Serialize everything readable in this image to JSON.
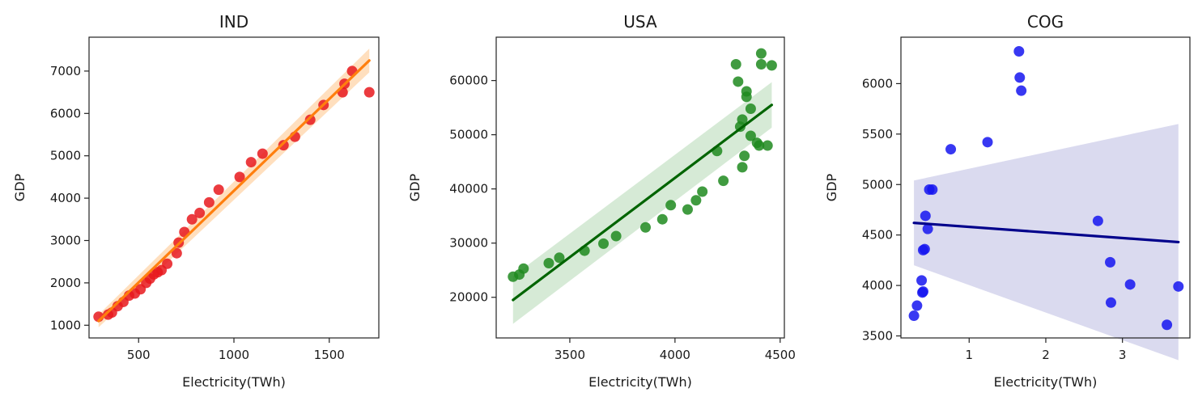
{
  "chart_data": [
    {
      "type": "scatter",
      "title": "IND",
      "xlabel": "Electricity(TWh)",
      "ylabel": "GDP",
      "xlim": [
        240,
        1760
      ],
      "ylim": [
        700,
        7800
      ],
      "xticks": [
        500,
        1000,
        1500
      ],
      "yticks": [
        1000,
        2000,
        3000,
        4000,
        5000,
        6000,
        7000
      ],
      "colors": {
        "points": "#e8191d",
        "line": "#ff7f0e",
        "band": "#ffd9b3"
      },
      "series": [
        {
          "x": [
            290,
            340,
            360,
            390,
            420,
            450,
            480,
            510,
            540,
            560,
            580,
            600,
            620,
            650,
            700,
            710,
            740,
            780,
            820,
            870,
            920,
            1030,
            1090,
            1150,
            1260,
            1320,
            1400,
            1470,
            1570,
            1580,
            1620,
            1710
          ],
          "y": [
            1200,
            1250,
            1300,
            1450,
            1550,
            1700,
            1750,
            1850,
            2000,
            2100,
            2200,
            2250,
            2300,
            2450,
            2700,
            2950,
            3200,
            3500,
            3650,
            3900,
            4200,
            4500,
            4850,
            5050,
            5250,
            5450,
            5850,
            6200,
            6500,
            6700,
            7000,
            6500
          ]
        }
      ],
      "fit": {
        "x": [
          290,
          1710
        ],
        "y": [
          1100,
          7250
        ],
        "band_halfwidth": [
          150,
          280
        ]
      }
    },
    {
      "type": "scatter",
      "title": "USA",
      "xlabel": "Electricity(TWh)",
      "ylabel": "GDP",
      "xlim": [
        3150,
        4520
      ],
      "ylim": [
        12500,
        68000
      ],
      "xticks": [
        3500,
        4000,
        4500
      ],
      "yticks": [
        20000,
        30000,
        40000,
        50000,
        60000
      ],
      "colors": {
        "points": "#1f8a1f",
        "line": "#006400",
        "band": "#cfe6cf"
      },
      "series": [
        {
          "x": [
            3230,
            3260,
            3280,
            3400,
            3450,
            3570,
            3660,
            3720,
            3860,
            3940,
            3980,
            4060,
            4100,
            4130,
            4200,
            4230,
            4290,
            4300,
            4310,
            4320,
            4330,
            4320,
            4340,
            4340,
            4360,
            4360,
            4390,
            4400,
            4410,
            4410,
            4440,
            4460
          ],
          "y": [
            23800,
            24200,
            25300,
            26300,
            27300,
            28600,
            29900,
            31300,
            32900,
            34400,
            37000,
            36200,
            37900,
            39500,
            47000,
            41500,
            63000,
            59800,
            51500,
            52800,
            46100,
            44000,
            57000,
            58000,
            54800,
            49800,
            48500,
            48000,
            63000,
            65000,
            48000,
            62800
          ]
        }
      ],
      "fit": {
        "x": [
          3230,
          4460
        ],
        "y": [
          19500,
          55500
        ],
        "band_halfwidth": [
          4400,
          4200
        ]
      }
    },
    {
      "type": "scatter",
      "title": "COG",
      "xlabel": "Electricity(TWh)",
      "ylabel": "GDP",
      "xlim": [
        0.11,
        3.88
      ],
      "ylim": [
        3480,
        6460
      ],
      "xticks": [
        1,
        2,
        3
      ],
      "yticks": [
        3500,
        4000,
        4500,
        5000,
        5500,
        6000
      ],
      "colors": {
        "points": "#1515f0",
        "line": "#00008b",
        "band": "#d3d4ec"
      },
      "series": [
        {
          "x": [
            0.28,
            0.32,
            0.38,
            0.39,
            0.4,
            0.4,
            0.42,
            0.43,
            0.46,
            0.48,
            0.52,
            0.76,
            1.24,
            1.65,
            1.66,
            1.68,
            2.68,
            2.84,
            2.85,
            3.1,
            3.58,
            3.73
          ],
          "y": [
            3700,
            3800,
            4050,
            3930,
            3940,
            4350,
            4360,
            4690,
            4560,
            4950,
            4950,
            5350,
            5420,
            6320,
            6060,
            5930,
            4640,
            4230,
            3830,
            4010,
            3610,
            3990
          ]
        }
      ],
      "fit": {
        "x": [
          0.28,
          3.73
        ],
        "y": [
          4620,
          4430
        ],
        "band_halfwidth": [
          420,
          1170
        ]
      }
    }
  ]
}
